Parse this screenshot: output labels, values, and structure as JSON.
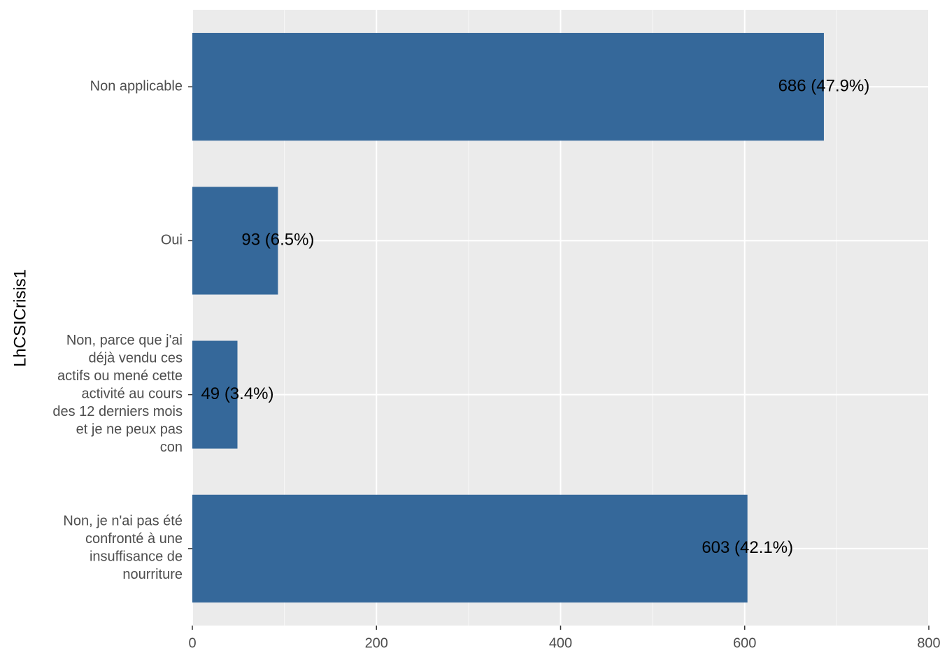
{
  "chart_data": {
    "type": "bar",
    "orientation": "horizontal",
    "y_label": "LhCSICrisis1",
    "categories": [
      "Non applicable",
      "Oui",
      "Non, parce que j'ai\ndéjà vendu ces\nactifs ou mené cette\nactivité au cours\ndes 12 derniers mois\net je ne peux pas\ncon",
      "Non, je n'ai pas été\nconfronté à une\ninsuffisance de\nnourriture"
    ],
    "values": [
      686,
      93,
      49,
      603
    ],
    "value_labels": [
      "686 (47.9%)",
      "93 (6.5%)",
      "49 (3.4%)",
      "603 (42.1%)"
    ],
    "color": "#35689a",
    "xlim": [
      0,
      800
    ],
    "xticks": [
      0,
      200,
      400,
      600,
      800
    ],
    "grid": true
  }
}
